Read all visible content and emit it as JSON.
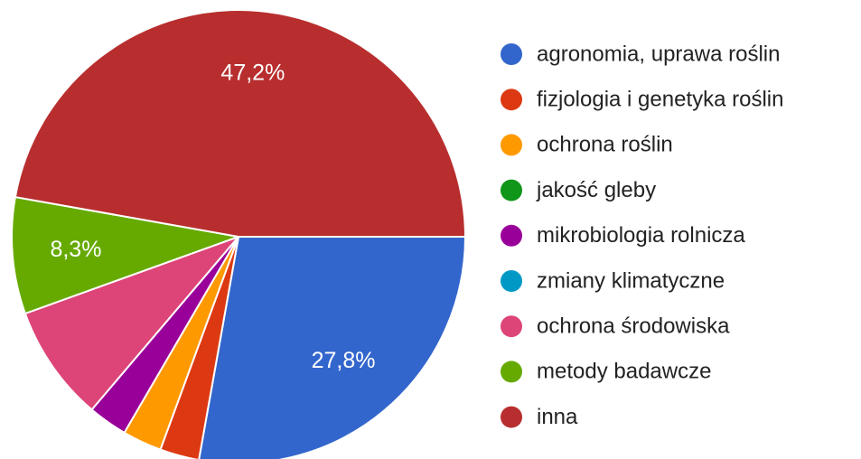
{
  "chart_data": {
    "type": "pie",
    "categories": [
      "agronomia, uprawa roślin",
      "fizjologia i genetyka roślin",
      "ochrona roślin",
      "jakość gleby",
      "mikrobiologia rolnicza",
      "zmiany klimatyczne",
      "ochrona środowiska",
      "metody badawcze",
      "inna"
    ],
    "values": [
      27.8,
      2.8,
      2.8,
      0,
      2.8,
      0,
      8.3,
      8.3,
      47.2
    ],
    "value_labels": [
      "27,8%",
      null,
      null,
      null,
      null,
      null,
      null,
      "8,3%",
      "47,2%"
    ],
    "colors": [
      "#3366cc",
      "#dc3912",
      "#ff9900",
      "#109618",
      "#990099",
      "#0099c6",
      "#dd4477",
      "#66aa00",
      "#b82e2e"
    ],
    "legend": "right"
  }
}
